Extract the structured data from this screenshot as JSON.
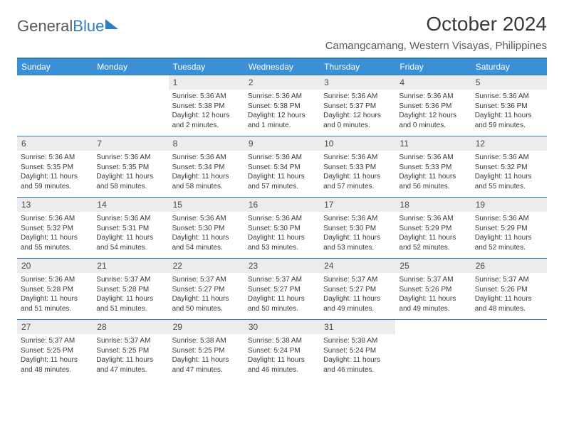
{
  "logo": {
    "text1": "General",
    "text2": "Blue"
  },
  "title": "October 2024",
  "location": "Camangcamang, Western Visayas, Philippines",
  "day_headers": [
    "Sunday",
    "Monday",
    "Tuesday",
    "Wednesday",
    "Thursday",
    "Friday",
    "Saturday"
  ],
  "colors": {
    "header_bg": "#3b8fd4",
    "header_text": "#ffffff",
    "daynum_bg": "#ececec",
    "border": "#2d7dc0",
    "logo_gray": "#5a5a5a",
    "logo_blue": "#2d7dc0",
    "text": "#3a3a3a"
  },
  "weeks": [
    [
      {
        "n": "",
        "sr": "",
        "ss": "",
        "dl": ""
      },
      {
        "n": "",
        "sr": "",
        "ss": "",
        "dl": ""
      },
      {
        "n": "1",
        "sr": "Sunrise: 5:36 AM",
        "ss": "Sunset: 5:38 PM",
        "dl": "Daylight: 12 hours and 2 minutes."
      },
      {
        "n": "2",
        "sr": "Sunrise: 5:36 AM",
        "ss": "Sunset: 5:38 PM",
        "dl": "Daylight: 12 hours and 1 minute."
      },
      {
        "n": "3",
        "sr": "Sunrise: 5:36 AM",
        "ss": "Sunset: 5:37 PM",
        "dl": "Daylight: 12 hours and 0 minutes."
      },
      {
        "n": "4",
        "sr": "Sunrise: 5:36 AM",
        "ss": "Sunset: 5:36 PM",
        "dl": "Daylight: 12 hours and 0 minutes."
      },
      {
        "n": "5",
        "sr": "Sunrise: 5:36 AM",
        "ss": "Sunset: 5:36 PM",
        "dl": "Daylight: 11 hours and 59 minutes."
      }
    ],
    [
      {
        "n": "6",
        "sr": "Sunrise: 5:36 AM",
        "ss": "Sunset: 5:35 PM",
        "dl": "Daylight: 11 hours and 59 minutes."
      },
      {
        "n": "7",
        "sr": "Sunrise: 5:36 AM",
        "ss": "Sunset: 5:35 PM",
        "dl": "Daylight: 11 hours and 58 minutes."
      },
      {
        "n": "8",
        "sr": "Sunrise: 5:36 AM",
        "ss": "Sunset: 5:34 PM",
        "dl": "Daylight: 11 hours and 58 minutes."
      },
      {
        "n": "9",
        "sr": "Sunrise: 5:36 AM",
        "ss": "Sunset: 5:34 PM",
        "dl": "Daylight: 11 hours and 57 minutes."
      },
      {
        "n": "10",
        "sr": "Sunrise: 5:36 AM",
        "ss": "Sunset: 5:33 PM",
        "dl": "Daylight: 11 hours and 57 minutes."
      },
      {
        "n": "11",
        "sr": "Sunrise: 5:36 AM",
        "ss": "Sunset: 5:33 PM",
        "dl": "Daylight: 11 hours and 56 minutes."
      },
      {
        "n": "12",
        "sr": "Sunrise: 5:36 AM",
        "ss": "Sunset: 5:32 PM",
        "dl": "Daylight: 11 hours and 55 minutes."
      }
    ],
    [
      {
        "n": "13",
        "sr": "Sunrise: 5:36 AM",
        "ss": "Sunset: 5:32 PM",
        "dl": "Daylight: 11 hours and 55 minutes."
      },
      {
        "n": "14",
        "sr": "Sunrise: 5:36 AM",
        "ss": "Sunset: 5:31 PM",
        "dl": "Daylight: 11 hours and 54 minutes."
      },
      {
        "n": "15",
        "sr": "Sunrise: 5:36 AM",
        "ss": "Sunset: 5:30 PM",
        "dl": "Daylight: 11 hours and 54 minutes."
      },
      {
        "n": "16",
        "sr": "Sunrise: 5:36 AM",
        "ss": "Sunset: 5:30 PM",
        "dl": "Daylight: 11 hours and 53 minutes."
      },
      {
        "n": "17",
        "sr": "Sunrise: 5:36 AM",
        "ss": "Sunset: 5:30 PM",
        "dl": "Daylight: 11 hours and 53 minutes."
      },
      {
        "n": "18",
        "sr": "Sunrise: 5:36 AM",
        "ss": "Sunset: 5:29 PM",
        "dl": "Daylight: 11 hours and 52 minutes."
      },
      {
        "n": "19",
        "sr": "Sunrise: 5:36 AM",
        "ss": "Sunset: 5:29 PM",
        "dl": "Daylight: 11 hours and 52 minutes."
      }
    ],
    [
      {
        "n": "20",
        "sr": "Sunrise: 5:36 AM",
        "ss": "Sunset: 5:28 PM",
        "dl": "Daylight: 11 hours and 51 minutes."
      },
      {
        "n": "21",
        "sr": "Sunrise: 5:37 AM",
        "ss": "Sunset: 5:28 PM",
        "dl": "Daylight: 11 hours and 51 minutes."
      },
      {
        "n": "22",
        "sr": "Sunrise: 5:37 AM",
        "ss": "Sunset: 5:27 PM",
        "dl": "Daylight: 11 hours and 50 minutes."
      },
      {
        "n": "23",
        "sr": "Sunrise: 5:37 AM",
        "ss": "Sunset: 5:27 PM",
        "dl": "Daylight: 11 hours and 50 minutes."
      },
      {
        "n": "24",
        "sr": "Sunrise: 5:37 AM",
        "ss": "Sunset: 5:27 PM",
        "dl": "Daylight: 11 hours and 49 minutes."
      },
      {
        "n": "25",
        "sr": "Sunrise: 5:37 AM",
        "ss": "Sunset: 5:26 PM",
        "dl": "Daylight: 11 hours and 49 minutes."
      },
      {
        "n": "26",
        "sr": "Sunrise: 5:37 AM",
        "ss": "Sunset: 5:26 PM",
        "dl": "Daylight: 11 hours and 48 minutes."
      }
    ],
    [
      {
        "n": "27",
        "sr": "Sunrise: 5:37 AM",
        "ss": "Sunset: 5:25 PM",
        "dl": "Daylight: 11 hours and 48 minutes."
      },
      {
        "n": "28",
        "sr": "Sunrise: 5:37 AM",
        "ss": "Sunset: 5:25 PM",
        "dl": "Daylight: 11 hours and 47 minutes."
      },
      {
        "n": "29",
        "sr": "Sunrise: 5:38 AM",
        "ss": "Sunset: 5:25 PM",
        "dl": "Daylight: 11 hours and 47 minutes."
      },
      {
        "n": "30",
        "sr": "Sunrise: 5:38 AM",
        "ss": "Sunset: 5:24 PM",
        "dl": "Daylight: 11 hours and 46 minutes."
      },
      {
        "n": "31",
        "sr": "Sunrise: 5:38 AM",
        "ss": "Sunset: 5:24 PM",
        "dl": "Daylight: 11 hours and 46 minutes."
      },
      {
        "n": "",
        "sr": "",
        "ss": "",
        "dl": ""
      },
      {
        "n": "",
        "sr": "",
        "ss": "",
        "dl": ""
      }
    ]
  ]
}
